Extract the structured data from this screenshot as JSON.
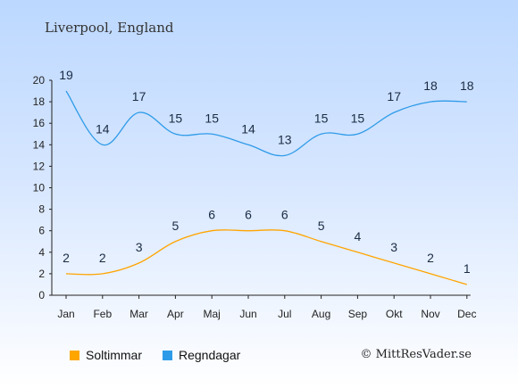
{
  "header": {
    "title": "Liverpool, England"
  },
  "legend": {
    "items": [
      {
        "label": "Soltimmar",
        "color": "#FFA500"
      },
      {
        "label": "Regndagar",
        "color": "#2E9BE8"
      }
    ]
  },
  "footer": {
    "copyright": "© MittResVader.se"
  },
  "chart_data": {
    "type": "line",
    "categories": [
      "Jan",
      "Feb",
      "Mar",
      "Apr",
      "Maj",
      "Jun",
      "Jul",
      "Aug",
      "Sep",
      "Okt",
      "Nov",
      "Dec"
    ],
    "series": [
      {
        "name": "Soltimmar",
        "color": "#FFA500",
        "values": [
          2,
          2,
          3,
          5,
          6,
          6,
          6,
          5,
          4,
          3,
          2,
          1
        ]
      },
      {
        "name": "Regndagar",
        "color": "#2E9BE8",
        "values": [
          19,
          14,
          17,
          15,
          15,
          14,
          13,
          15,
          15,
          17,
          18,
          18
        ]
      }
    ],
    "ylim": [
      0,
      20
    ],
    "yticks": [
      0,
      2,
      4,
      6,
      8,
      10,
      12,
      14,
      16,
      18,
      20
    ],
    "grid": false,
    "legend_position": "bottom-left"
  }
}
